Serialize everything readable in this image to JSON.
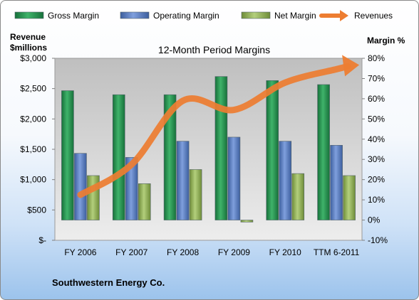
{
  "chart_data": {
    "type": "bar",
    "title": "12-Month Period Margins",
    "company": "Southwestern Energy Co.",
    "categories": [
      "FY 2006",
      "FY 2007",
      "FY 2008",
      "FY 2009",
      "FY 2010",
      "TTM 6-2011"
    ],
    "left_axis": {
      "label_line1": "Revenue",
      "label_line2": "$millions",
      "range": [
        0,
        3000
      ],
      "ticks": [
        0,
        500,
        1000,
        1500,
        2000,
        2500,
        3000
      ],
      "tick_labels": [
        "$-",
        "$500",
        "$1,000",
        "$1,500",
        "$2,000",
        "$2,500",
        "$3,000"
      ]
    },
    "right_axis": {
      "label": "Margin %",
      "range": [
        -10,
        80
      ],
      "ticks": [
        -10,
        0,
        10,
        20,
        30,
        40,
        50,
        60,
        70,
        80
      ],
      "tick_labels": [
        "-10%",
        "0%",
        "10%",
        "20%",
        "30%",
        "40%",
        "50%",
        "60%",
        "70%",
        "80%"
      ]
    },
    "series": [
      {
        "name": "Gross Margin",
        "type": "bar",
        "axis": "right",
        "color": "#1f8a45",
        "values": [
          64,
          62,
          62,
          71,
          69,
          67
        ]
      },
      {
        "name": "Operating Margin",
        "type": "bar",
        "axis": "right",
        "color": "#4f72b8",
        "values": [
          33,
          31,
          39,
          41,
          39,
          37
        ]
      },
      {
        "name": "Net Margin",
        "type": "bar",
        "axis": "right",
        "color": "#8cad4e",
        "values": [
          22,
          18,
          25,
          -1,
          23,
          22
        ]
      },
      {
        "name": "Revenues",
        "type": "line",
        "axis": "left",
        "color": "#ed7d31",
        "values": [
          750,
          1250,
          2300,
          2150,
          2600,
          2820
        ]
      }
    ],
    "legend_position": "top",
    "grid": false
  }
}
